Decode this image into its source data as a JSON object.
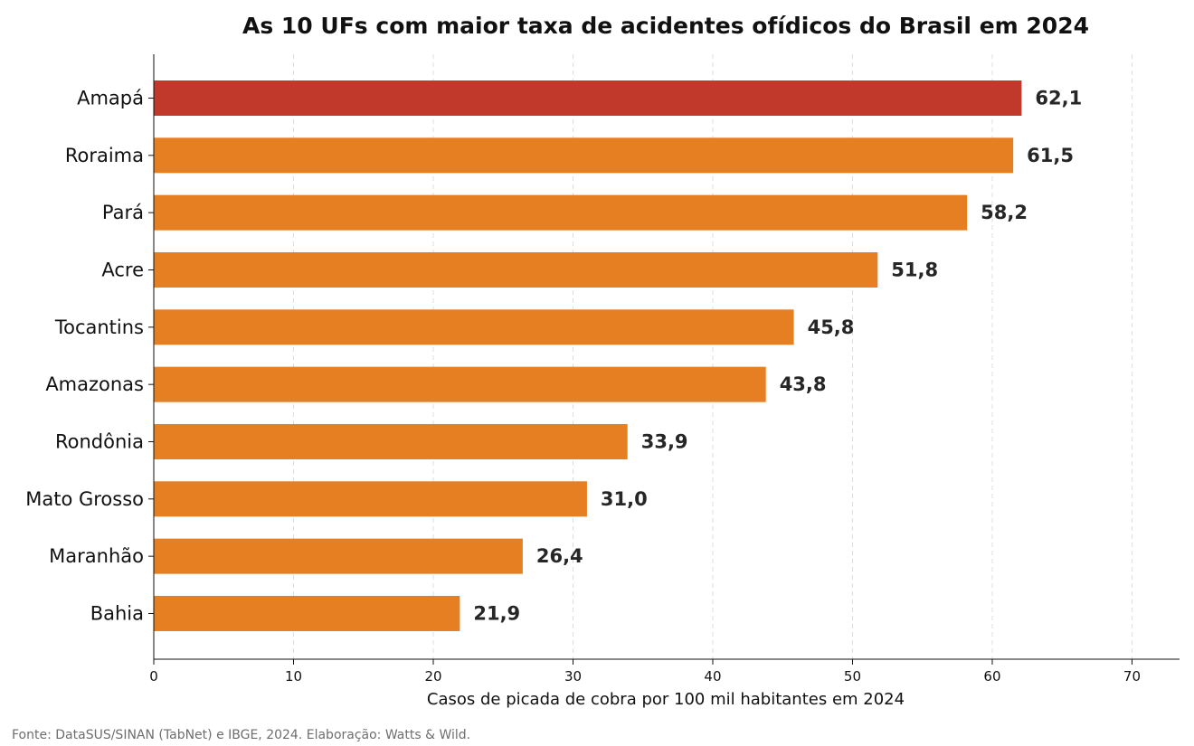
{
  "chart_data": {
    "type": "bar",
    "orientation": "horizontal",
    "title": "As 10 UFs com maior taxa de acidentes ofídicos do Brasil em 2024",
    "xlabel": "Casos de picada de cobra por 100 mil habitantes em 2024",
    "ylabel": "",
    "xlim": [
      0,
      73.4
    ],
    "x_ticks": [
      0,
      10,
      20,
      30,
      40,
      50,
      60,
      70
    ],
    "grid": "vertical dashed",
    "categories": [
      "Amapá",
      "Roraima",
      "Pará",
      "Acre",
      "Tocantins",
      "Amazonas",
      "Rondônia",
      "Mato Grosso",
      "Maranhão",
      "Bahia"
    ],
    "values": [
      62.1,
      61.5,
      58.2,
      51.8,
      45.8,
      43.8,
      33.9,
      31.0,
      26.4,
      21.9
    ],
    "value_labels": [
      "62,1",
      "61,5",
      "58,2",
      "51,8",
      "45,8",
      "43,8",
      "33,9",
      "31,0",
      "26,4",
      "21,9"
    ],
    "colors": {
      "highlight": "#c0392b",
      "default": "#e67e22",
      "grid": "#dddddd",
      "axis": "#111111"
    }
  },
  "source_note": "Fonte: DataSUS/SINAN (TabNet) e IBGE, 2024. Elaboração: Watts & Wild."
}
